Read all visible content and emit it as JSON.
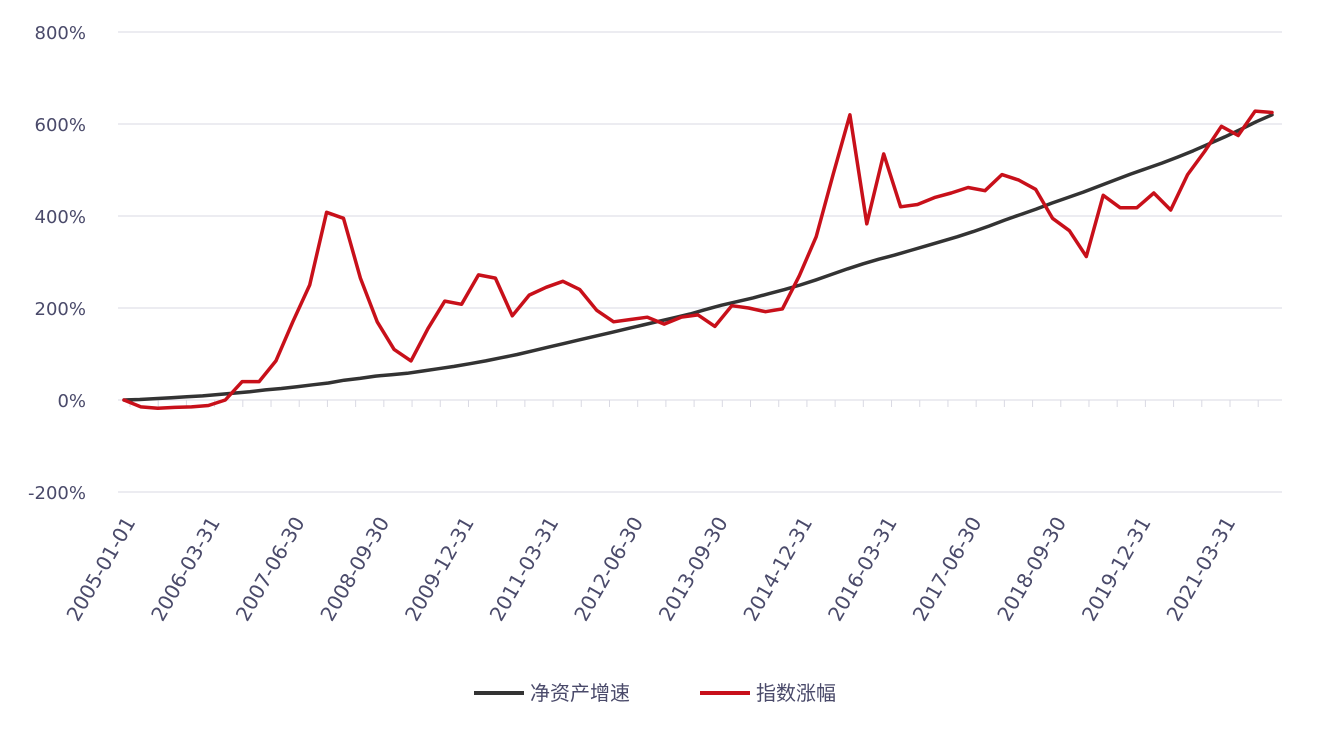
{
  "chart_data": {
    "type": "line",
    "title": "",
    "xlabel": "",
    "ylabel": "",
    "ylim": [
      -200,
      800
    ],
    "y_ticks": [
      -200,
      0,
      200,
      400,
      600,
      800
    ],
    "y_tick_labels": [
      "-200%",
      "0%",
      "200%",
      "400%",
      "600%",
      "800%"
    ],
    "x_tick_labels": [
      "2005-01-01",
      "2006-03-31",
      "2007-06-30",
      "2008-09-30",
      "2009-12-31",
      "2011-03-31",
      "2012-06-30",
      "2013-09-30",
      "2014-12-31",
      "2016-03-31",
      "2017-06-30",
      "2018-09-30",
      "2019-12-31",
      "2021-03-31"
    ],
    "grid": true,
    "legend_position": "bottom",
    "series": [
      {
        "name": "净资产增速",
        "color": "#333333",
        "values": [
          0,
          1,
          3,
          5,
          7,
          9,
          12,
          15,
          18,
          22,
          25,
          29,
          33,
          37,
          43,
          47,
          52,
          55,
          58,
          63,
          68,
          73,
          79,
          85,
          92,
          99,
          107,
          115,
          123,
          131,
          139,
          147,
          155,
          163,
          171,
          179,
          187,
          197,
          206,
          214,
          222,
          231,
          240,
          250,
          261,
          273,
          285,
          296,
          306,
          315,
          325,
          335,
          345,
          355,
          366,
          378,
          391,
          403,
          415,
          428,
          440,
          452,
          465,
          478,
          491,
          503,
          515,
          528,
          542,
          557,
          572,
          588,
          605,
          620
        ]
      },
      {
        "name": "指数涨幅",
        "color": "#c8101a",
        "values": [
          0,
          -15,
          -18,
          -16,
          -15,
          -12,
          0,
          40,
          40,
          85,
          170,
          250,
          408,
          395,
          265,
          170,
          110,
          85,
          155,
          215,
          208,
          272,
          265,
          183,
          228,
          245,
          258,
          240,
          195,
          170,
          175,
          180,
          165,
          180,
          185,
          160,
          205,
          200,
          192,
          198,
          270,
          355,
          490,
          620,
          383,
          535,
          420,
          425,
          440,
          450,
          462,
          455,
          490,
          478,
          458,
          395,
          368,
          312,
          445,
          418,
          418,
          450,
          413,
          490,
          540,
          595,
          575,
          628,
          625
        ]
      }
    ]
  }
}
